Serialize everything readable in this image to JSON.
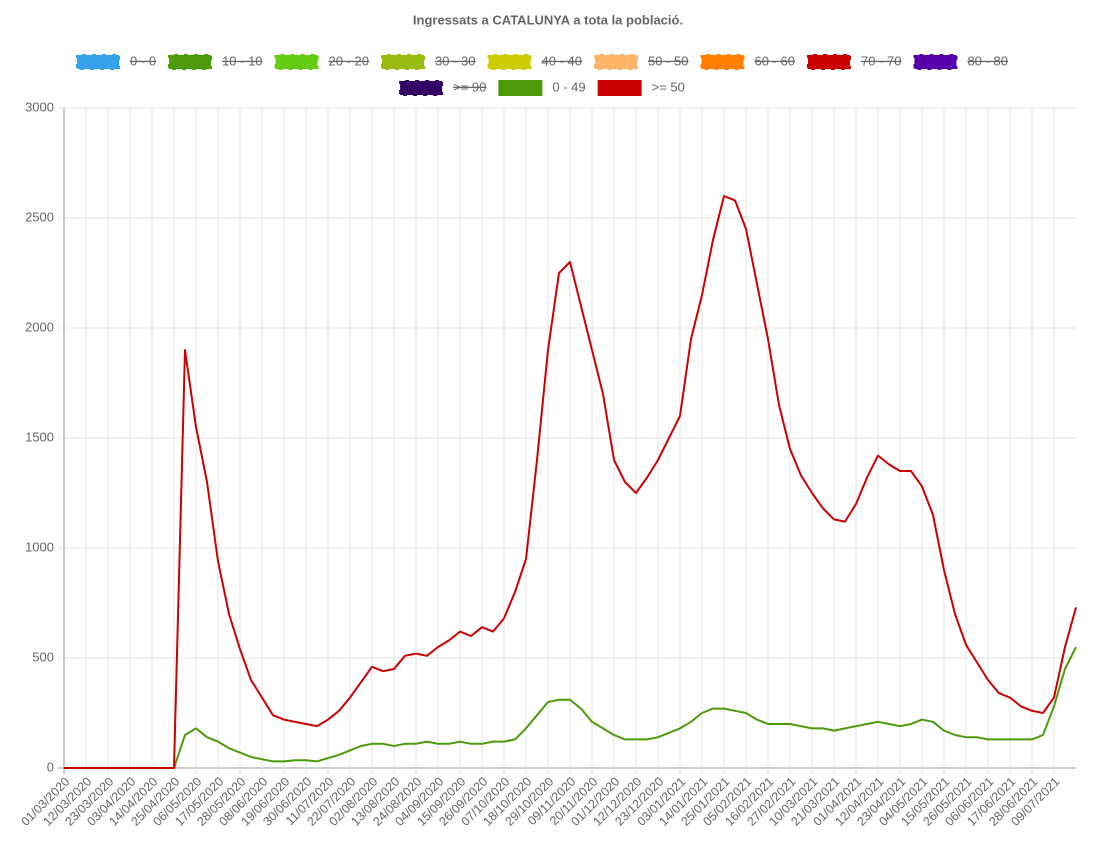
{
  "chart_data": {
    "type": "line",
    "title": "Ingressats a CATALUNYA a tota la població.",
    "categories": [
      "01/03/2020",
      null,
      "12/03/2020",
      null,
      "23/03/2020",
      null,
      "03/04/2020",
      null,
      "14/04/2020",
      null,
      "25/04/2020",
      null,
      "06/05/2020",
      null,
      "17/05/2020",
      null,
      "28/05/2020",
      null,
      "08/06/2020",
      null,
      "19/06/2020",
      null,
      "30/06/2020",
      null,
      "11/07/2020",
      null,
      "22/07/2020",
      null,
      "02/08/2020",
      null,
      "13/08/2020",
      null,
      "24/08/2020",
      null,
      "04/09/2020",
      null,
      "15/09/2020",
      null,
      "26/09/2020",
      null,
      "07/10/2020",
      null,
      "18/10/2020",
      null,
      "29/10/2020",
      null,
      "09/11/2020",
      null,
      "20/11/2020",
      null,
      "01/12/2020",
      null,
      "12/12/2020",
      null,
      "23/12/2020",
      null,
      "03/01/2021",
      null,
      "14/01/2021",
      null,
      "25/01/2021",
      null,
      "05/02/2021",
      null,
      "16/02/2021",
      null,
      "27/02/2021",
      null,
      "10/03/2021",
      null,
      "21/03/2021",
      null,
      "01/04/2021",
      null,
      "12/04/2021",
      null,
      "23/04/2021",
      null,
      "04/05/2021",
      null,
      "15/05/2021",
      null,
      "26/05/2021",
      null,
      "06/06/2021",
      null,
      "17/06/2021",
      null,
      "28/06/2021",
      null,
      "09/07/2021",
      null,
      null
    ],
    "series": [
      {
        "name": "0 - 49",
        "color": "#4d9a0a",
        "values": [
          0,
          0,
          0,
          0,
          0,
          0,
          0,
          0,
          0,
          0,
          0,
          150,
          180,
          140,
          120,
          90,
          70,
          50,
          40,
          30,
          30,
          35,
          35,
          30,
          45,
          60,
          80,
          100,
          110,
          110,
          100,
          110,
          110,
          120,
          110,
          110,
          120,
          110,
          110,
          120,
          120,
          130,
          180,
          240,
          300,
          310,
          310,
          270,
          210,
          180,
          150,
          130,
          130,
          130,
          140,
          160,
          180,
          210,
          250,
          270,
          270,
          260,
          250,
          220,
          200,
          200,
          200,
          190,
          180,
          180,
          170,
          180,
          190,
          200,
          210,
          200,
          190,
          200,
          220,
          210,
          170,
          150,
          140,
          140,
          130,
          130,
          130,
          130,
          130,
          150,
          280,
          450,
          550
        ]
      },
      {
        "name": ">= 50",
        "color": "#cc0000",
        "values": [
          0,
          0,
          0,
          0,
          0,
          0,
          0,
          0,
          0,
          0,
          0,
          1900,
          1550,
          1300,
          940,
          700,
          540,
          400,
          320,
          240,
          220,
          210,
          200,
          190,
          220,
          260,
          320,
          390,
          460,
          440,
          450,
          510,
          520,
          510,
          550,
          580,
          620,
          600,
          640,
          620,
          680,
          800,
          950,
          1400,
          1900,
          2250,
          2300,
          2100,
          1900,
          1700,
          1400,
          1300,
          1250,
          1320,
          1400,
          1500,
          1600,
          1950,
          2150,
          2400,
          2600,
          2580,
          2450,
          2200,
          1950,
          1650,
          1450,
          1330,
          1250,
          1180,
          1130,
          1120,
          1200,
          1320,
          1420,
          1380,
          1350,
          1350,
          1280,
          1150,
          900,
          700,
          560,
          480,
          400,
          340,
          320,
          280,
          260,
          250,
          320,
          550,
          730
        ]
      }
    ],
    "hidden_series": [
      {
        "name": "0 - 0",
        "color": "#36a2eb"
      },
      {
        "name": "10 - 10",
        "color": "#4d9a0a"
      },
      {
        "name": "20 - 20",
        "color": "#66cc11"
      },
      {
        "name": "30 - 30",
        "color": "#99bb11"
      },
      {
        "name": "40 - 40",
        "color": "#cccc00"
      },
      {
        "name": "50 - 50",
        "color": "#ffb366"
      },
      {
        "name": "60 - 60",
        "color": "#ff8000"
      },
      {
        "name": "70 - 70",
        "color": "#cc0000"
      },
      {
        "name": "80 - 80",
        "color": "#5500aa"
      },
      {
        "name": ">= 90",
        "color": "#330066"
      }
    ],
    "ylim": [
      0,
      3000
    ],
    "yticks": [
      0,
      500,
      1000,
      1500,
      2000,
      2500,
      3000
    ],
    "grid": true
  }
}
